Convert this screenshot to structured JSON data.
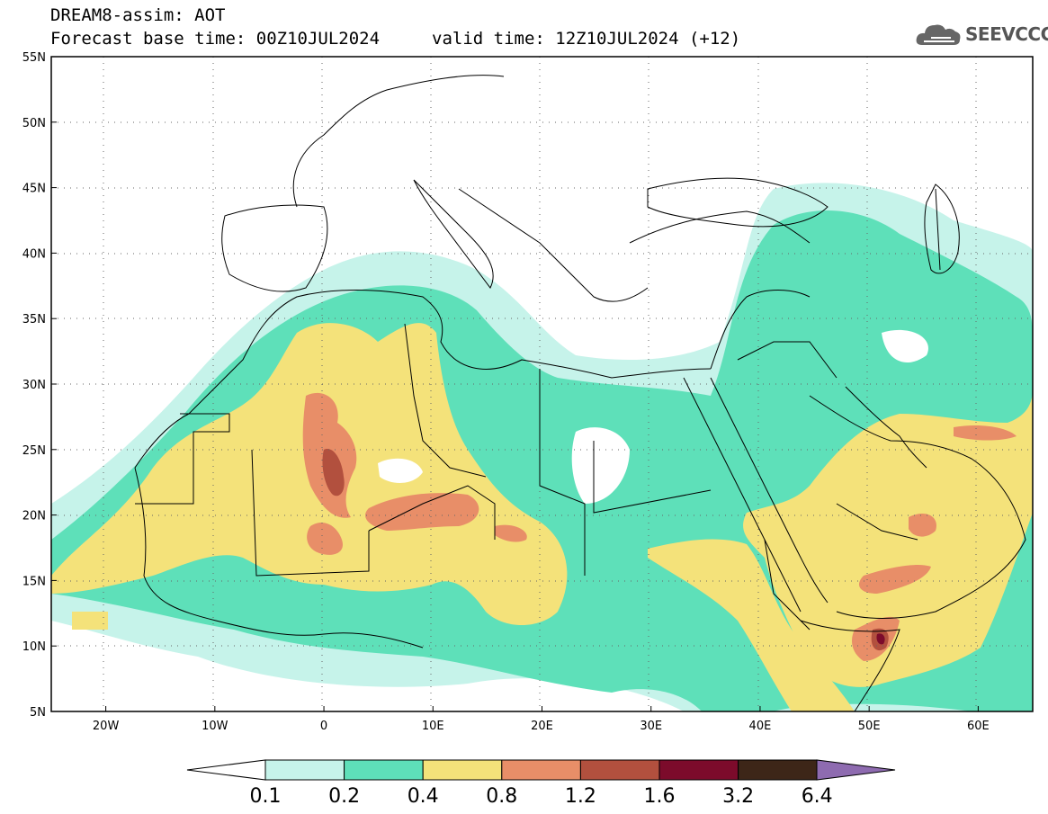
{
  "header": {
    "product": "DREAM8-assim: AOT",
    "base_time": "Forecast base time: 00Z10JUL2024",
    "valid_time": "valid time: 12Z10JUL2024 (+12)"
  },
  "logo": {
    "text": "SEEVCCC",
    "icon": "cloud-icon"
  },
  "map": {
    "lon_range": [
      -25,
      65
    ],
    "lat_range": [
      5,
      55
    ],
    "lat_ticks": [
      "5N",
      "10N",
      "15N",
      "20N",
      "25N",
      "30N",
      "35N",
      "40N",
      "45N",
      "50N",
      "55N"
    ],
    "lon_ticks": [
      "20W",
      "10W",
      "0",
      "10E",
      "20E",
      "30E",
      "40E",
      "50E",
      "60E"
    ],
    "lat_values": [
      5,
      10,
      15,
      20,
      25,
      30,
      35,
      40,
      45,
      50,
      55
    ],
    "lon_values": [
      -20,
      -10,
      0,
      10,
      20,
      30,
      40,
      50,
      60
    ]
  },
  "colorbar": {
    "labels": [
      "0.1",
      "0.2",
      "0.4",
      "0.8",
      "1.2",
      "1.6",
      "3.2",
      "6.4"
    ],
    "colors": [
      "#c6f3ea",
      "#5ee0b9",
      "#f4e27a",
      "#e88e68",
      "#b2503e",
      "#7c0b2b",
      "#3d2618",
      "#8e6bb0"
    ]
  }
}
